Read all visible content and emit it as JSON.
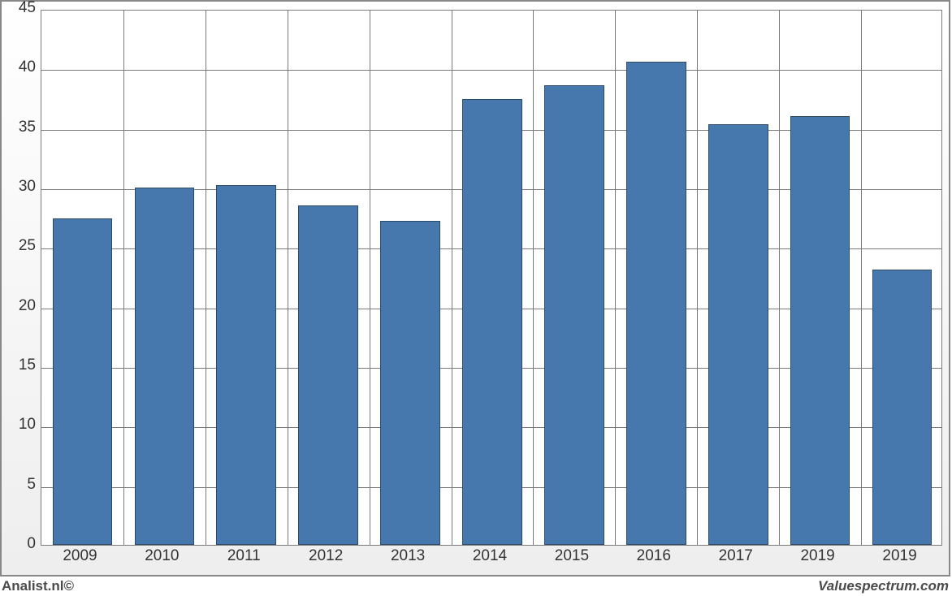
{
  "chart": {
    "type": "bar",
    "categories": [
      "2009",
      "2010",
      "2011",
      "2012",
      "2013",
      "2014",
      "2015",
      "2016",
      "2017",
      "2019",
      "2019"
    ],
    "values": [
      27.4,
      30.0,
      30.2,
      28.5,
      27.2,
      37.4,
      38.6,
      40.6,
      35.3,
      36.0,
      23.1
    ],
    "bar_color": "#4678ad",
    "bar_border_color": "#2a4a6a",
    "ylim": [
      0,
      45
    ],
    "ytick_step": 5,
    "yticks": [
      0,
      5,
      10,
      15,
      20,
      25,
      30,
      35,
      40,
      45
    ],
    "background_color": "#ffffff",
    "grid_color": "#7a7a7a",
    "outer_border_color": "#888888",
    "bar_width_ratio": 0.73,
    "tick_fontsize": 19,
    "tick_color": "#333333",
    "footer_fontsize": 17,
    "footer_color": "#4a4a4a"
  },
  "footer": {
    "left": "Analist.nl©",
    "right": "Valuespectrum.com"
  }
}
